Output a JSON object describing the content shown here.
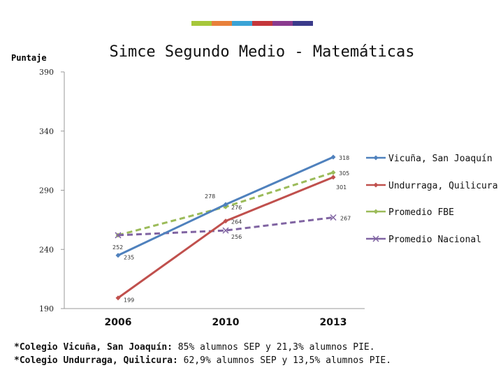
{
  "header": {
    "color_bar": [
      "#a6c73a",
      "#e8803a",
      "#3aa3d6",
      "#c4363a",
      "#8a3a8e",
      "#3a3a8a"
    ]
  },
  "chart_data": {
    "type": "line",
    "title": "Simce Segundo Medio - Matemáticas",
    "ylabel": "Puntaje",
    "xlabel": "",
    "ylim": [
      190,
      390
    ],
    "yticks": [
      "390",
      "340",
      "290",
      "240",
      "190"
    ],
    "yticks_values": [
      390,
      340,
      290,
      240,
      190
    ],
    "categories": [
      "2006",
      "2010",
      "2013"
    ],
    "grid": false,
    "legend_position": "right",
    "series": [
      {
        "name": "Vicuña, San Joaquín",
        "values": [
          235,
          278,
          318
        ],
        "labels": [
          "235",
          "278",
          "318"
        ],
        "color": "#4f81bd",
        "dashed": false,
        "marker": "diamond"
      },
      {
        "name": "Undurraga, Quilicura",
        "values": [
          199,
          264,
          301
        ],
        "labels": [
          "199",
          "264",
          "301"
        ],
        "color": "#c0504d",
        "dashed": false,
        "marker": "diamond"
      },
      {
        "name": "Promedio FBE",
        "values": [
          252,
          276,
          305
        ],
        "labels": [
          "252",
          "276",
          "305"
        ],
        "color": "#9bbb59",
        "dashed": true,
        "marker": "diamond"
      },
      {
        "name": "Promedio Nacional",
        "values": [
          252,
          256,
          267
        ],
        "labels": [
          "",
          "256",
          "267"
        ],
        "color": "#8064a2",
        "dashed": true,
        "marker": "x"
      }
    ]
  },
  "notes": [
    {
      "name": "*Colegio Vicuña, San Joaquín:",
      "text": " 85% alumnos SEP y 21,3% alumnos PIE."
    },
    {
      "name": "*Colegio Undurraga, Quilicura:",
      "text": " 62,9% alumnos SEP y 13,5% alumnos PIE."
    }
  ]
}
